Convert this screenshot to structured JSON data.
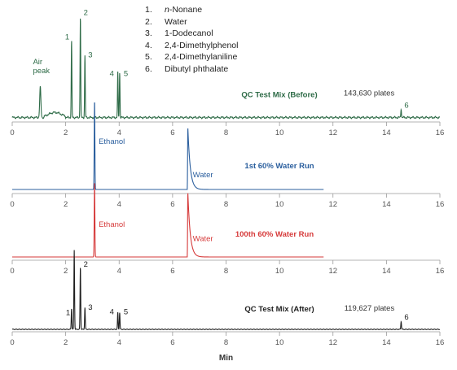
{
  "legend": [
    {
      "num": "1.",
      "prefix": "n",
      "name": "-Nonane"
    },
    {
      "num": "2.",
      "prefix": "",
      "name": "Water"
    },
    {
      "num": "3.",
      "prefix": "",
      "name": "1-Dodecanol"
    },
    {
      "num": "4.",
      "prefix": "",
      "name": "2,4-Dimethylphenol"
    },
    {
      "num": "5.",
      "prefix": "",
      "name": "2,4-Dimethylaniline"
    },
    {
      "num": "6.",
      "prefix": "",
      "name": "Dibutyl phthalate"
    }
  ],
  "chart_data": [
    {
      "type": "line",
      "title": "QC Test Mix (Before)",
      "color": "#2e6b47",
      "x_ticks": [
        0,
        2,
        4,
        6,
        8,
        10,
        12,
        14,
        16
      ],
      "xlim": [
        0,
        16
      ],
      "baseline_end": 16,
      "peaks": [
        {
          "label": "Air peak",
          "rt": 1.05,
          "height": 0.27
        },
        {
          "label": "1",
          "rt": 2.22,
          "height": 0.68
        },
        {
          "label": "2",
          "rt": 2.55,
          "height": 0.9
        },
        {
          "label": "3",
          "rt": 2.72,
          "height": 0.55
        },
        {
          "label": "4",
          "rt": 3.95,
          "height": 0.4
        },
        {
          "label": "5",
          "rt": 4.02,
          "height": 0.4
        },
        {
          "label": "6",
          "rt": 14.55,
          "height": 0.08
        }
      ],
      "annotations": [
        {
          "text": "143,630 plates",
          "x": 14.3
        }
      ]
    },
    {
      "type": "line",
      "title": "1st 60% Water Run",
      "color": "#2b5f9e",
      "x_ticks": [
        0,
        2,
        4,
        6,
        8,
        10,
        12,
        14,
        16
      ],
      "xlim": [
        0,
        16
      ],
      "baseline_end": 11.65,
      "peaks": [
        {
          "label": "Ethanol",
          "rt": 3.08,
          "height": 1.0
        },
        {
          "label": "Water",
          "rt": 6.57,
          "height": 0.7
        }
      ]
    },
    {
      "type": "line",
      "title": "100th 60% Water Run",
      "color": "#d63a3a",
      "x_ticks": [
        0,
        2,
        4,
        6,
        8,
        10,
        12,
        14,
        16
      ],
      "xlim": [
        0,
        16
      ],
      "baseline_end": 11.65,
      "peaks": [
        {
          "label": "Ethanol",
          "rt": 3.08,
          "height": 0.95
        },
        {
          "label": "Water",
          "rt": 6.57,
          "height": 0.82
        }
      ]
    },
    {
      "type": "line",
      "title": "QC Test Mix (After)",
      "color": "#1f1f1f",
      "x_ticks": [
        0,
        2,
        4,
        6,
        8,
        10,
        12,
        14,
        16
      ],
      "xlim": [
        0,
        16
      ],
      "baseline_end": 16,
      "xlabel": "Min",
      "peaks": [
        {
          "label": "1",
          "rt": 2.22,
          "height": 0.21
        },
        {
          "label": "",
          "rt": 2.32,
          "height": 0.8
        },
        {
          "label": "2",
          "rt": 2.55,
          "height": 0.63
        },
        {
          "label": "3",
          "rt": 2.72,
          "height": 0.22
        },
        {
          "label": "4",
          "rt": 3.95,
          "height": 0.17
        },
        {
          "label": "5",
          "rt": 4.02,
          "height": 0.17
        },
        {
          "label": "6",
          "rt": 14.55,
          "height": 0.08
        }
      ],
      "annotations": [
        {
          "text": "119,627 plates",
          "x": 14.3
        }
      ]
    }
  ]
}
